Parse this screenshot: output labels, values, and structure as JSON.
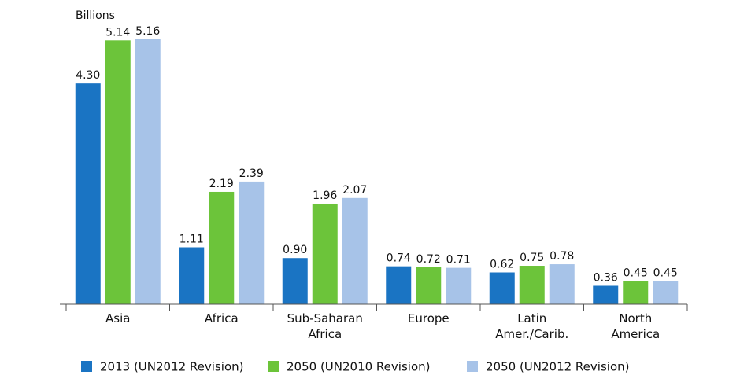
{
  "chart_data": {
    "type": "bar",
    "y_label": "Billions",
    "categories": [
      "Asia",
      "Africa",
      "Sub-Saharan\nAfrica",
      "Europe",
      "Latin\nAmer./Carib.",
      "North\nAmerica"
    ],
    "series": [
      {
        "name": "2013 (UN2012 Revision)",
        "color": "#1a74c3",
        "values": [
          4.3,
          1.11,
          0.9,
          0.74,
          0.62,
          0.36
        ],
        "value_labels": [
          "4.30",
          "1.11",
          "0.90",
          "0.74",
          "0.62",
          "0.36"
        ]
      },
      {
        "name": "2050 (UN2010 Revision)",
        "color": "#6cc43a",
        "values": [
          5.14,
          2.19,
          1.96,
          0.72,
          0.75,
          0.45
        ],
        "value_labels": [
          "5.14",
          "2.19",
          "1.96",
          "0.72",
          "0.75",
          "0.45"
        ]
      },
      {
        "name": "2050 (UN2012 Revision)",
        "color": "#a7c3e8",
        "values": [
          5.16,
          2.39,
          2.07,
          0.71,
          0.78,
          0.45
        ],
        "value_labels": [
          "5.16",
          "2.39",
          "2.07",
          "0.71",
          "0.78",
          "0.45"
        ]
      }
    ],
    "ylim": [
      0,
      5.5
    ]
  }
}
